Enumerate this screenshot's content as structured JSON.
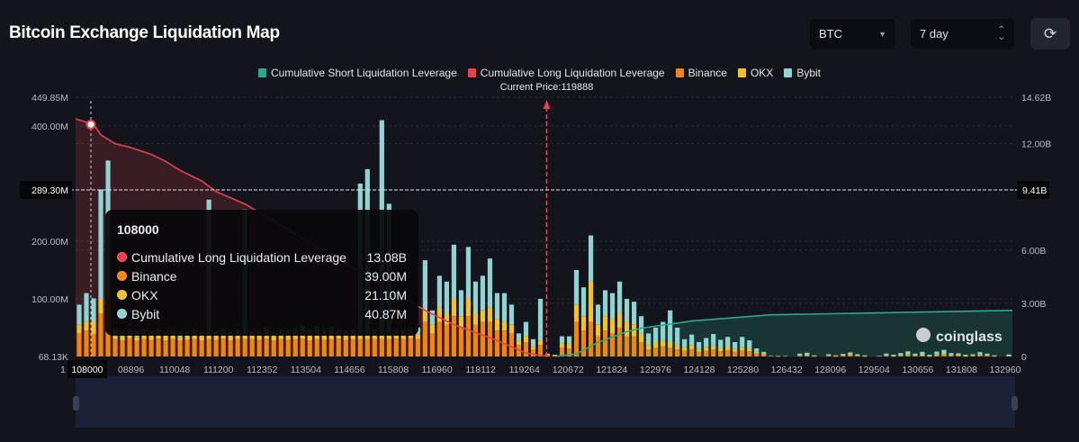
{
  "header": {
    "title": "Bitcoin Exchange Liquidation Map",
    "coin_select": "BTC",
    "range_select": "7 day",
    "refresh_icon": "refresh-icon"
  },
  "colors": {
    "short": "#2aa98b",
    "long": "#e8404f",
    "binance": "#f0850f",
    "okx": "#f2c12e",
    "bybit": "#8fd4d2"
  },
  "chart_data": {
    "type": "bar",
    "title": "Bitcoin Exchange Liquidation Map",
    "legend": [
      "Cumulative Short Liquidation Leverage",
      "Cumulative Long Liquidation Leverage",
      "Binance",
      "OKX",
      "Bybit"
    ],
    "legend_position": "top-center",
    "current_price_label": "Current Price:119888",
    "current_price_bin": 65,
    "left_axis": {
      "ticks": [
        "449.85M",
        "400.00M",
        "200.00M",
        "100.00M",
        "68.13K"
      ],
      "tick_values": [
        449.85,
        400,
        200,
        100,
        0
      ],
      "max": 449.85,
      "unit": "M"
    },
    "right_axis": {
      "ticks": [
        "14.62B",
        "12.00B",
        "6.00B",
        "3.00B",
        "0"
      ],
      "tick_values": [
        14.62,
        12,
        6,
        3,
        0
      ],
      "max": 14.62,
      "unit": "B"
    },
    "x_ticks": [
      "1",
      "108000",
      "08896",
      "110048",
      "111200",
      "112352",
      "113504",
      "114656",
      "115808",
      "116960",
      "118112",
      "119264",
      "120672",
      "121824",
      "122976",
      "124128",
      "125280",
      "126432",
      "128096",
      "129504",
      "130656",
      "131808",
      "132960"
    ],
    "bins": 130,
    "series": [
      {
        "name": "Binance",
        "values": [
          40,
          45,
          39,
          75,
          100,
          30,
          28,
          32,
          27,
          30,
          29,
          31,
          28,
          30,
          27,
          29,
          30,
          28,
          30,
          29,
          31,
          28,
          30,
          30,
          30,
          29,
          31,
          28,
          30,
          29,
          30,
          31,
          28,
          30,
          29,
          30,
          31,
          29,
          30,
          30,
          30,
          30,
          30,
          30,
          31,
          30,
          32,
          30,
          60,
          40,
          60,
          55,
          70,
          50,
          70,
          55,
          60,
          60,
          45,
          45,
          40,
          20,
          25,
          12,
          20,
          3,
          2,
          15,
          14,
          60,
          45,
          60,
          35,
          45,
          40,
          50,
          35,
          35,
          25,
          12,
          15,
          18,
          15,
          12,
          10,
          12,
          8,
          10,
          12,
          9,
          11,
          8,
          10,
          9,
          5,
          3,
          0,
          0.5,
          0,
          0,
          1,
          1.5,
          0.5,
          0,
          1,
          0.5,
          1.5,
          2,
          1,
          0.5,
          0,
          0,
          1,
          0.5,
          1,
          2,
          1,
          1.5,
          0.5,
          2,
          2.5,
          1,
          1.5,
          0.5,
          1,
          2,
          1,
          0.5,
          0,
          1
        ]
      },
      {
        "name": "OKX",
        "values": [
          15,
          15,
          21.1,
          25,
          25,
          8,
          7,
          9,
          7,
          8,
          8,
          7,
          8,
          9,
          7,
          8,
          7,
          8,
          8,
          8,
          7,
          8,
          7,
          8,
          7,
          8,
          8,
          7,
          8,
          8,
          7,
          8,
          8,
          7,
          8,
          7,
          8,
          8,
          7,
          10,
          10,
          8,
          10,
          10,
          8,
          8,
          9,
          8,
          20,
          15,
          25,
          20,
          30,
          20,
          30,
          20,
          20,
          25,
          20,
          15,
          15,
          8,
          10,
          5,
          8,
          1,
          0.5,
          8,
          9,
          30,
          25,
          70,
          20,
          25,
          25,
          25,
          25,
          20,
          15,
          8,
          10,
          10,
          10,
          8,
          6,
          8,
          5,
          6,
          7,
          6,
          7,
          5,
          6,
          5,
          3,
          2,
          0,
          0.5,
          0,
          0,
          1,
          1,
          0.5,
          0,
          1,
          0.5,
          1,
          2,
          1,
          0.5,
          0,
          0,
          1,
          0.5,
          1,
          2,
          1,
          1.5,
          0.5,
          1.5,
          2,
          1,
          1,
          0.5,
          1,
          1.5,
          1,
          0.5,
          0,
          0.5
        ]
      },
      {
        "name": "Bybit",
        "values": [
          35,
          50,
          40.87,
          190,
          215,
          10,
          8,
          6,
          12,
          9,
          7,
          10,
          8,
          6,
          9,
          8,
          10,
          7,
          234,
          8,
          9,
          7,
          10,
          217,
          8,
          7,
          10,
          6,
          9,
          8,
          12,
          14,
          10,
          16,
          12,
          14,
          9,
          8,
          10,
          260,
          285,
          10,
          370,
          225,
          9,
          10,
          8,
          12,
          87,
          25,
          55,
          55,
          94,
          45,
          90,
          55,
          60,
          85,
          45,
          50,
          35,
          12,
          25,
          13,
          72,
          1,
          0.5,
          12,
          12,
          60,
          50,
          80,
          35,
          45,
          45,
          55,
          40,
          40,
          30,
          20,
          25,
          32,
          55,
          30,
          14,
          18,
          12,
          16,
          20,
          14,
          16,
          12,
          18,
          14,
          6,
          3,
          1,
          0,
          1,
          0,
          3,
          4,
          1,
          0,
          2,
          1,
          2,
          3,
          2,
          1,
          0,
          1,
          3,
          2,
          4,
          5,
          3,
          5,
          2,
          5,
          7,
          4,
          3,
          2,
          2,
          4,
          3,
          1,
          0,
          2
        ]
      },
      {
        "name": "Cumulative Long Liquidation Leverage",
        "axis": "right",
        "points": [
          [
            0,
            13.4
          ],
          [
            2,
            13.08
          ],
          [
            3,
            12.5
          ],
          [
            5,
            12.0
          ],
          [
            7,
            11.8
          ],
          [
            10,
            11.4
          ],
          [
            12,
            11.0
          ],
          [
            14,
            10.5
          ],
          [
            17,
            9.9
          ],
          [
            19,
            9.3
          ],
          [
            23,
            8.6
          ],
          [
            48,
            2.6
          ],
          [
            52,
            1.8
          ],
          [
            58,
            0.9
          ],
          [
            62,
            0.2
          ],
          [
            65,
            0
          ]
        ]
      },
      {
        "name": "Cumulative Short Liquidation Leverage",
        "axis": "right",
        "points": [
          [
            66,
            0
          ],
          [
            69,
            0.15
          ],
          [
            72,
            0.8
          ],
          [
            76,
            1.4
          ],
          [
            78,
            1.6
          ],
          [
            85,
            2.0
          ],
          [
            96,
            2.35
          ],
          [
            129,
            2.6
          ]
        ]
      }
    ],
    "crosshair": {
      "bin_label": "108000",
      "left_value": "289.30M",
      "right_value": "9.41B"
    }
  },
  "tooltip": {
    "title": "108000",
    "rows": [
      {
        "label": "Cumulative Long Liquidation Leverage",
        "value": "13.08B"
      },
      {
        "label": "Binance",
        "value": "39.00M"
      },
      {
        "label": "OKX",
        "value": "21.10M"
      },
      {
        "label": "Bybit",
        "value": "40.87M"
      }
    ]
  },
  "watermark": "coinglass"
}
